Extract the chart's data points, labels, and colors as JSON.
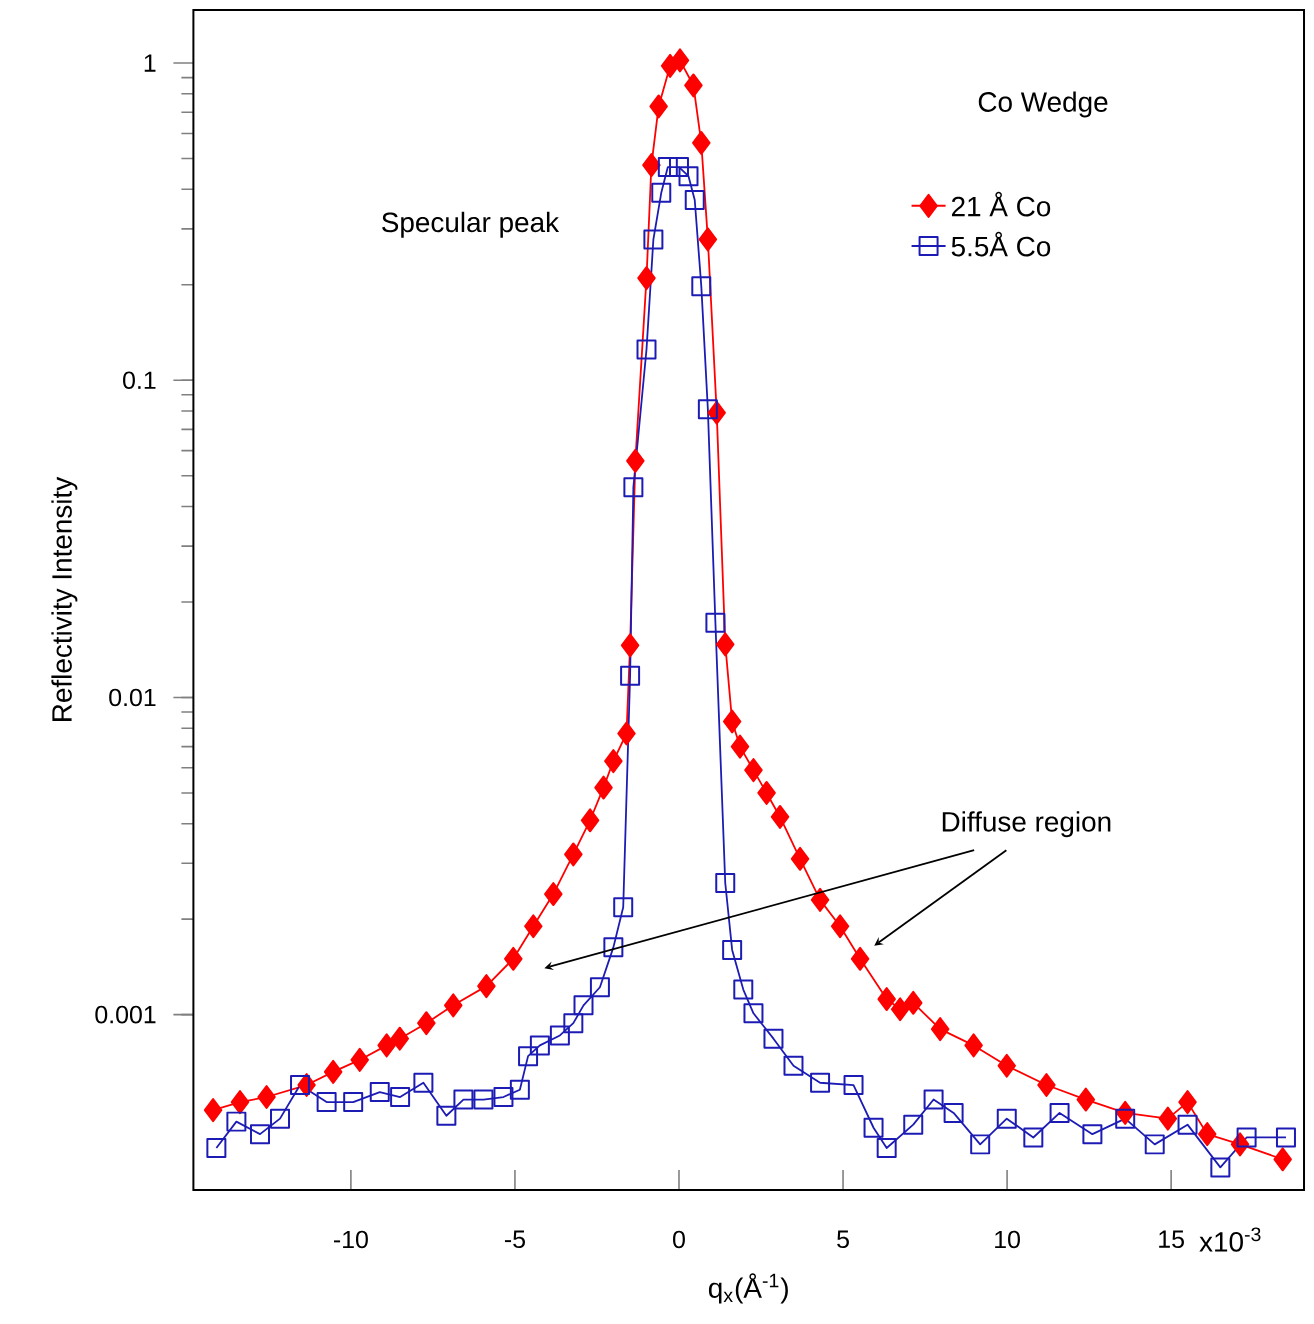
{
  "chart_data": {
    "type": "line",
    "xlabel": "q$_{x}$(Å$^{-1}$)",
    "ylabel": "Reflectivity Intensity",
    "legend_title": "Co Wedge",
    "legend": "top right",
    "log": "y",
    "grid": false,
    "line_style": "solid",
    "xlim": [
      -14.8,
      19.05
    ],
    "ylim": [
      0.00028,
      1.47
    ],
    "xticks": [
      -10,
      -5,
      0,
      5,
      10,
      15
    ],
    "yticks": [
      0.001,
      0.01,
      0.1,
      1
    ],
    "annotations": [
      "Specular peak",
      "Diffuse region",
      "x10$^{-3}$"
    ],
    "series": [
      {
        "name": "21 Å Co",
        "color": "#ff0000",
        "marker": "diamond",
        "x": [
          -14.2,
          -13.38,
          -12.57,
          -11.35,
          -10.54,
          -9.73,
          -8.91,
          -8.51,
          -7.7,
          -6.88,
          -5.87,
          -5.05,
          -4.44,
          -3.83,
          -3.22,
          -2.71,
          -2.3,
          -2.0,
          -1.6,
          -1.49,
          -1.33,
          -0.99,
          -0.84,
          -0.62,
          -0.27,
          0.03,
          0.44,
          0.68,
          0.88,
          1.15,
          1.41,
          1.62,
          1.86,
          2.27,
          2.67,
          3.08,
          3.69,
          4.3,
          4.91,
          5.52,
          6.33,
          6.74,
          7.14,
          7.96,
          8.98,
          9.99,
          11.2,
          12.4,
          13.6,
          14.9,
          15.5,
          16.1,
          17.1,
          18.4
        ],
        "values": [
          0.0005,
          0.00053,
          0.00055,
          0.0006,
          0.00066,
          0.00072,
          0.0008,
          0.00084,
          0.00094,
          0.00107,
          0.00123,
          0.0015,
          0.0019,
          0.0024,
          0.0032,
          0.0041,
          0.0052,
          0.0063,
          0.0077,
          0.0146,
          0.0557,
          0.21,
          0.477,
          0.73,
          0.98,
          1.02,
          0.85,
          0.56,
          0.278,
          0.079,
          0.0147,
          0.0084,
          0.007,
          0.0059,
          0.005,
          0.0042,
          0.0031,
          0.0023,
          0.0019,
          0.0015,
          0.00112,
          0.00104,
          0.00109,
          0.0009,
          0.0008,
          0.00069,
          0.0006,
          0.00054,
          0.00049,
          0.00047,
          0.00053,
          0.00042,
          0.00039,
          0.00035
        ]
      },
      {
        "name": "5.5Å Co",
        "color": "#1c1cb4",
        "marker": "square",
        "x": [
          -14.1,
          -13.49,
          -12.77,
          -12.16,
          -11.55,
          -10.74,
          -9.93,
          -9.12,
          -8.5,
          -7.79,
          -7.09,
          -6.57,
          -5.96,
          -5.35,
          -4.85,
          -4.6,
          -4.24,
          -3.63,
          -3.22,
          -2.91,
          -2.41,
          -2.0,
          -1.7,
          -1.49,
          -1.39,
          -0.99,
          -0.78,
          -0.54,
          -0.34,
          0,
          0.29,
          0.48,
          0.68,
          0.88,
          1.11,
          1.41,
          1.62,
          1.96,
          2.27,
          2.88,
          3.49,
          4.3,
          5.32,
          5.93,
          6.33,
          7.14,
          7.76,
          8.37,
          9.18,
          9.99,
          10.8,
          11.6,
          12.6,
          13.6,
          14.5,
          15.5,
          16.5,
          17.3,
          18.5
        ],
        "values": [
          0.00038,
          0.00046,
          0.00042,
          0.00047,
          0.0006,
          0.00053,
          0.00053,
          0.00057,
          0.00055,
          0.00061,
          0.00048,
          0.00054,
          0.00054,
          0.00055,
          0.00058,
          0.00074,
          0.0008,
          0.00086,
          0.00094,
          0.00107,
          0.00122,
          0.00163,
          0.00218,
          0.0117,
          0.046,
          0.125,
          0.278,
          0.39,
          0.47,
          0.47,
          0.44,
          0.37,
          0.198,
          0.081,
          0.0172,
          0.0026,
          0.0016,
          0.0012,
          0.00101,
          0.00084,
          0.00069,
          0.00061,
          0.0006,
          0.00044,
          0.00038,
          0.00045,
          0.00054,
          0.00049,
          0.00039,
          0.00047,
          0.00041,
          0.00049,
          0.00042,
          0.00047,
          0.00039,
          0.00045,
          0.00033,
          0.00041,
          0.00041
        ]
      }
    ]
  }
}
